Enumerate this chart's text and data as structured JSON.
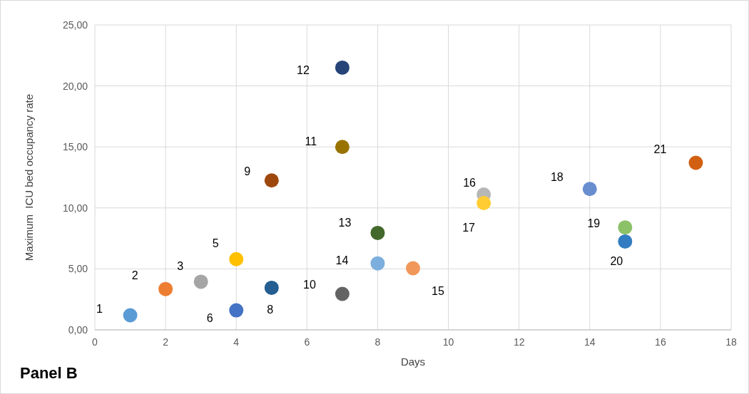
{
  "chart_data": {
    "type": "scatter",
    "xlabel": "Days",
    "ylabel": "Maximum  ICU bed occupancy rate",
    "x": [
      1,
      2,
      3,
      4,
      4,
      5,
      5,
      7,
      7,
      7,
      8,
      8,
      9,
      11,
      11,
      14,
      15,
      15,
      17
    ],
    "values": [
      1.2,
      3.35,
      3.95,
      5.8,
      1.6,
      3.45,
      12.25,
      2.95,
      15,
      21.5,
      7.95,
      5.45,
      5.05,
      11.1,
      10.4,
      11.55,
      8.4,
      7.25,
      13.7
    ],
    "colors": [
      "#5b9bd5",
      "#ed7d31",
      "#a5a5a5",
      "#ffc000",
      "#4472c4",
      "#255e91",
      "#9e480e",
      "#636363",
      "#997300",
      "#264478",
      "#43682b",
      "#7cafdd",
      "#f1975a",
      "#b7b7b7",
      "#ffcd33",
      "#698ed0",
      "#8cc168",
      "#327dc2",
      "#d26012"
    ],
    "marker": "circle",
    "grid": true,
    "xlim": [
      0,
      18
    ],
    "xticks": [
      0,
      2,
      4,
      6,
      8,
      10,
      12,
      14,
      16,
      18
    ],
    "ylim": [
      0,
      25
    ],
    "yticks": [
      {
        "value": 0,
        "label": "0,00"
      },
      {
        "value": 5,
        "label": "5,00"
      },
      {
        "value": 10,
        "label": "10,00"
      },
      {
        "value": 15,
        "label": "15,00"
      },
      {
        "value": 20,
        "label": "20,00"
      },
      {
        "value": 25,
        "label": "25,00"
      }
    ],
    "annotations": [
      {
        "text": "1",
        "x": 1,
        "y": 1.2
      },
      {
        "text": "2",
        "x": 2,
        "y": 3.35
      },
      {
        "text": "3",
        "x": 3,
        "y": 3.95
      },
      {
        "text": "5",
        "x": 4,
        "y": 5.8
      },
      {
        "text": "6",
        "x": 4,
        "y": 1.6
      },
      {
        "text": "8",
        "x": 5,
        "y": 3.45
      },
      {
        "text": "9",
        "x": 5,
        "y": 12.25
      },
      {
        "text": "10",
        "x": 7,
        "y": 2.95
      },
      {
        "text": "11",
        "x": 7,
        "y": 15
      },
      {
        "text": "12",
        "x": 7,
        "y": 21.5
      },
      {
        "text": "13",
        "x": 8,
        "y": 7.95
      },
      {
        "text": "14",
        "x": 8,
        "y": 5.45
      },
      {
        "text": "15",
        "x": 9,
        "y": 5.05
      },
      {
        "text": "16",
        "x": 11,
        "y": 11.1
      },
      {
        "text": "17",
        "x": 11,
        "y": 10.4
      },
      {
        "text": "18",
        "x": 14,
        "y": 11.55
      },
      {
        "text": "19",
        "x": 15,
        "y": 8.4
      },
      {
        "text": "20",
        "x": 15,
        "y": 7.25
      },
      {
        "text": "21",
        "x": 17,
        "y": 13.7
      },
      "Panel B"
    ]
  }
}
